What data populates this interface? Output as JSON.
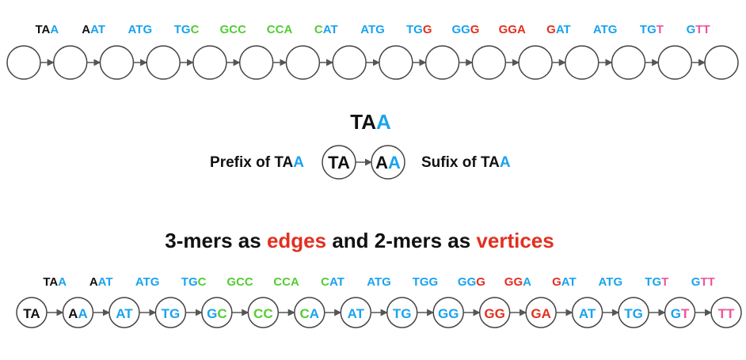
{
  "colors": {
    "black": "#111111",
    "blue": "#1aa3ee",
    "green": "#55cc33",
    "red": "#e23020",
    "pink": "#ee5599",
    "edge": "#555555",
    "circle": "#444444"
  },
  "row1": {
    "kmers": [
      [
        [
          "T",
          "black"
        ],
        [
          "A",
          "black"
        ],
        [
          "A",
          "blue"
        ]
      ],
      [
        [
          "A",
          "black"
        ],
        [
          "A",
          "blue"
        ],
        [
          "T",
          "blue"
        ]
      ],
      [
        [
          "A",
          "blue"
        ],
        [
          "T",
          "blue"
        ],
        [
          "G",
          "blue"
        ]
      ],
      [
        [
          "T",
          "blue"
        ],
        [
          "G",
          "blue"
        ],
        [
          "C",
          "green"
        ]
      ],
      [
        [
          "G",
          "green"
        ],
        [
          "C",
          "green"
        ],
        [
          "C",
          "green"
        ]
      ],
      [
        [
          "C",
          "green"
        ],
        [
          "C",
          "green"
        ],
        [
          "A",
          "green"
        ]
      ],
      [
        [
          "C",
          "green"
        ],
        [
          "A",
          "blue"
        ],
        [
          "T",
          "blue"
        ]
      ],
      [
        [
          "A",
          "blue"
        ],
        [
          "T",
          "blue"
        ],
        [
          "G",
          "blue"
        ]
      ],
      [
        [
          "T",
          "blue"
        ],
        [
          "G",
          "blue"
        ],
        [
          "G",
          "red"
        ]
      ],
      [
        [
          "G",
          "blue"
        ],
        [
          "G",
          "blue"
        ],
        [
          "G",
          "red"
        ]
      ],
      [
        [
          "G",
          "red"
        ],
        [
          "G",
          "red"
        ],
        [
          "A",
          "red"
        ]
      ],
      [
        [
          "G",
          "red"
        ],
        [
          "A",
          "blue"
        ],
        [
          "T",
          "blue"
        ]
      ],
      [
        [
          "A",
          "blue"
        ],
        [
          "T",
          "blue"
        ],
        [
          "G",
          "blue"
        ]
      ],
      [
        [
          "T",
          "blue"
        ],
        [
          "G",
          "blue"
        ],
        [
          "T",
          "pink"
        ]
      ],
      [
        [
          "G",
          "blue"
        ],
        [
          "T",
          "pink"
        ],
        [
          "T",
          "pink"
        ]
      ]
    ],
    "node_count": 16
  },
  "example": {
    "kmer": [
      [
        "T",
        "black"
      ],
      [
        "A",
        "black"
      ],
      [
        "A",
        "blue"
      ]
    ],
    "prefix_label": [
      [
        "Prefix of TA",
        "black"
      ],
      [
        "A",
        "blue"
      ]
    ],
    "prefix_node": [
      [
        "T",
        "black"
      ],
      [
        "A",
        "black"
      ]
    ],
    "suffix_node": [
      [
        "A",
        "black"
      ],
      [
        "A",
        "blue"
      ]
    ],
    "suffix_label": [
      [
        "Sufix of TA",
        "black"
      ],
      [
        "A",
        "blue"
      ]
    ]
  },
  "title": [
    [
      "3-mers as ",
      "black"
    ],
    [
      "edges",
      "red"
    ],
    [
      " and 2-mers as ",
      "black"
    ],
    [
      "vertices",
      "red"
    ]
  ],
  "row3": {
    "kmers": [
      [
        [
          "T",
          "black"
        ],
        [
          "A",
          "black"
        ],
        [
          "A",
          "blue"
        ]
      ],
      [
        [
          "A",
          "black"
        ],
        [
          "A",
          "blue"
        ],
        [
          "T",
          "blue"
        ]
      ],
      [
        [
          "A",
          "blue"
        ],
        [
          "T",
          "blue"
        ],
        [
          "G",
          "blue"
        ]
      ],
      [
        [
          "T",
          "blue"
        ],
        [
          "G",
          "blue"
        ],
        [
          "C",
          "green"
        ]
      ],
      [
        [
          "G",
          "green"
        ],
        [
          "C",
          "green"
        ],
        [
          "C",
          "green"
        ]
      ],
      [
        [
          "C",
          "green"
        ],
        [
          "C",
          "green"
        ],
        [
          "A",
          "green"
        ]
      ],
      [
        [
          "C",
          "green"
        ],
        [
          "A",
          "blue"
        ],
        [
          "T",
          "blue"
        ]
      ],
      [
        [
          "A",
          "blue"
        ],
        [
          "T",
          "blue"
        ],
        [
          "G",
          "blue"
        ]
      ],
      [
        [
          "T",
          "blue"
        ],
        [
          "G",
          "blue"
        ],
        [
          "G",
          "blue"
        ]
      ],
      [
        [
          "G",
          "blue"
        ],
        [
          "G",
          "blue"
        ],
        [
          "G",
          "red"
        ]
      ],
      [
        [
          "G",
          "red"
        ],
        [
          "G",
          "red"
        ],
        [
          "A",
          "blue"
        ]
      ],
      [
        [
          "G",
          "red"
        ],
        [
          "A",
          "blue"
        ],
        [
          "T",
          "blue"
        ]
      ],
      [
        [
          "A",
          "blue"
        ],
        [
          "T",
          "blue"
        ],
        [
          "G",
          "blue"
        ]
      ],
      [
        [
          "T",
          "blue"
        ],
        [
          "G",
          "blue"
        ],
        [
          "T",
          "pink"
        ]
      ],
      [
        [
          "G",
          "blue"
        ],
        [
          "T",
          "pink"
        ],
        [
          "T",
          "pink"
        ]
      ]
    ],
    "nodes": [
      [
        [
          "T",
          "black"
        ],
        [
          "A",
          "black"
        ]
      ],
      [
        [
          "A",
          "black"
        ],
        [
          "A",
          "blue"
        ]
      ],
      [
        [
          "A",
          "blue"
        ],
        [
          "T",
          "blue"
        ]
      ],
      [
        [
          "T",
          "blue"
        ],
        [
          "G",
          "blue"
        ]
      ],
      [
        [
          "G",
          "blue"
        ],
        [
          "C",
          "green"
        ]
      ],
      [
        [
          "C",
          "green"
        ],
        [
          "C",
          "green"
        ]
      ],
      [
        [
          "C",
          "green"
        ],
        [
          "A",
          "blue"
        ]
      ],
      [
        [
          "A",
          "blue"
        ],
        [
          "T",
          "blue"
        ]
      ],
      [
        [
          "T",
          "blue"
        ],
        [
          "G",
          "blue"
        ]
      ],
      [
        [
          "G",
          "blue"
        ],
        [
          "G",
          "blue"
        ]
      ],
      [
        [
          "G",
          "red"
        ],
        [
          "G",
          "red"
        ]
      ],
      [
        [
          "G",
          "red"
        ],
        [
          "A",
          "red"
        ]
      ],
      [
        [
          "A",
          "blue"
        ],
        [
          "T",
          "blue"
        ]
      ],
      [
        [
          "T",
          "blue"
        ],
        [
          "G",
          "blue"
        ]
      ],
      [
        [
          "G",
          "blue"
        ],
        [
          "T",
          "pink"
        ]
      ],
      [
        [
          "T",
          "pink"
        ],
        [
          "T",
          "pink"
        ]
      ]
    ]
  }
}
